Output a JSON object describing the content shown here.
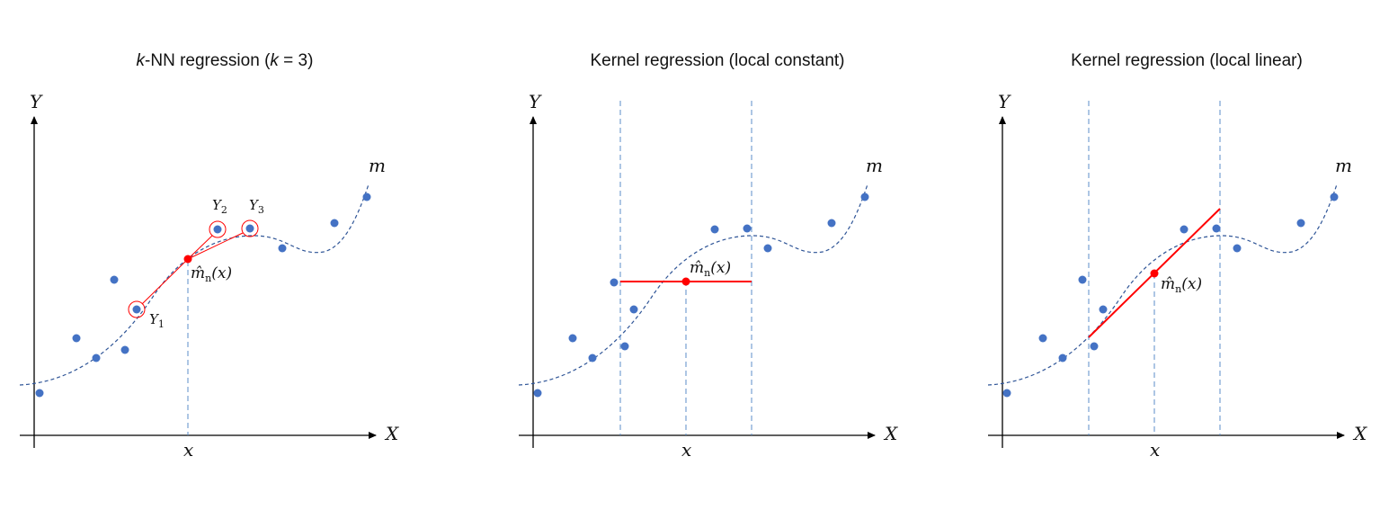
{
  "figure": {
    "panels": [
      {
        "id": "knn",
        "title_prefix": "k",
        "title_rest": "-NN regression (",
        "title_k": "k",
        "title_suffix": " = 3)",
        "y_axis_label": "Y",
        "x_axis_label": "X",
        "curve_label": "m",
        "x_point_label": "x",
        "estimate_label": "m̂",
        "estimate_sub": "n",
        "estimate_arg": "(x)",
        "neighbor_labels": [
          {
            "letter": "Y",
            "sub": "1"
          },
          {
            "letter": "Y",
            "sub": "2"
          },
          {
            "letter": "Y",
            "sub": "3"
          }
        ]
      },
      {
        "id": "kernel-constant",
        "title": "Kernel regression (local constant)",
        "y_axis_label": "Y",
        "x_axis_label": "X",
        "curve_label": "m",
        "x_point_label": "x",
        "estimate_label": "m̂",
        "estimate_sub": "n",
        "estimate_arg": "(x)"
      },
      {
        "id": "kernel-linear",
        "title": "Kernel regression (local linear)",
        "y_axis_label": "Y",
        "x_axis_label": "X",
        "curve_label": "m",
        "x_point_label": "x",
        "estimate_label": "m̂",
        "estimate_sub": "n",
        "estimate_arg": "(x)"
      }
    ],
    "colors": {
      "points": "#4472C4",
      "curve": "#2F5597",
      "estimate": "#FF0000",
      "window_lines": "#5B8DC9",
      "axes": "#000000"
    }
  }
}
